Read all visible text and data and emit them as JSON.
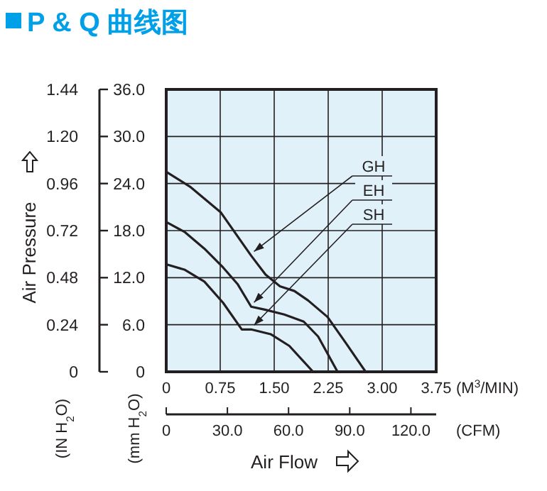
{
  "chart_data": {
    "type": "line",
    "title": "P & Q 曲线图",
    "xlabel": "(M$^{3}$/MIN)",
    "x2label": "(CFM)",
    "ylabel": "(mm H$_{2}$O)",
    "y2label": "(IN H$_{2}$O)",
    "annotations": [
      "Air Pressure",
      "Air Flow"
    ],
    "xlim": [
      0,
      3.75
    ],
    "xticks": [
      0,
      {
        "value": 0.75,
        "label": "0.75"
      },
      {
        "value": 1.5,
        "label": "1.50"
      },
      {
        "value": 2.25,
        "label": "2.25"
      },
      {
        "value": 3,
        "label": "3.00"
      },
      {
        "value": 3.75,
        "label": "3.75"
      }
    ],
    "x2lim": [
      0,
      132.4
    ],
    "x2ticks": [
      0,
      {
        "value": 30,
        "label": "30.0"
      },
      {
        "value": 60,
        "label": "60.0"
      },
      {
        "value": 90,
        "label": "90.0"
      },
      {
        "value": 120,
        "label": "120.0"
      }
    ],
    "ylim": [
      0,
      36
    ],
    "yticks": [
      0,
      {
        "value": 6,
        "label": "6.0"
      },
      {
        "value": 12,
        "label": "12.0"
      },
      {
        "value": 18,
        "label": "18.0"
      },
      {
        "value": 24,
        "label": "24.0"
      },
      {
        "value": 30,
        "label": "30.0"
      },
      {
        "value": 36,
        "label": "36.0"
      }
    ],
    "y2lim": [
      0,
      1.44
    ],
    "y2ticks": [
      0,
      0.24,
      0.48,
      0.72,
      0.96,
      {
        "value": 1.2,
        "label": "1.20"
      },
      1.44
    ],
    "grid": true,
    "legend": "right",
    "marker": "none",
    "line_style": "solid",
    "series": [
      {
        "name": "GH",
        "color": "#231f20",
        "x": [
          0,
          0.33,
          0.76,
          1.18,
          1.38,
          1.58,
          1.78,
          1.97,
          2.24,
          2.5,
          2.77
        ],
        "values": [
          25.5,
          23.6,
          20.3,
          14.8,
          12.4,
          10.9,
          10.3,
          9.1,
          7.0,
          3.6,
          0
        ]
      },
      {
        "name": "EH",
        "color": "#231f20",
        "x": [
          0,
          0.26,
          0.53,
          0.79,
          0.99,
          1.18,
          1.38,
          1.64,
          1.91,
          2.11,
          2.38
        ],
        "values": [
          19.1,
          17.8,
          15.7,
          13.3,
          11.2,
          8.3,
          7.9,
          7.3,
          6.4,
          4.5,
          0
        ]
      },
      {
        "name": "SH",
        "color": "#231f20",
        "x": [
          0,
          0.26,
          0.53,
          0.79,
          1.05,
          1.18,
          1.45,
          1.71,
          2.04
        ],
        "values": [
          13.7,
          13.0,
          11.5,
          8.8,
          5.4,
          5.4,
          4.8,
          3.3,
          0
        ]
      }
    ]
  }
}
